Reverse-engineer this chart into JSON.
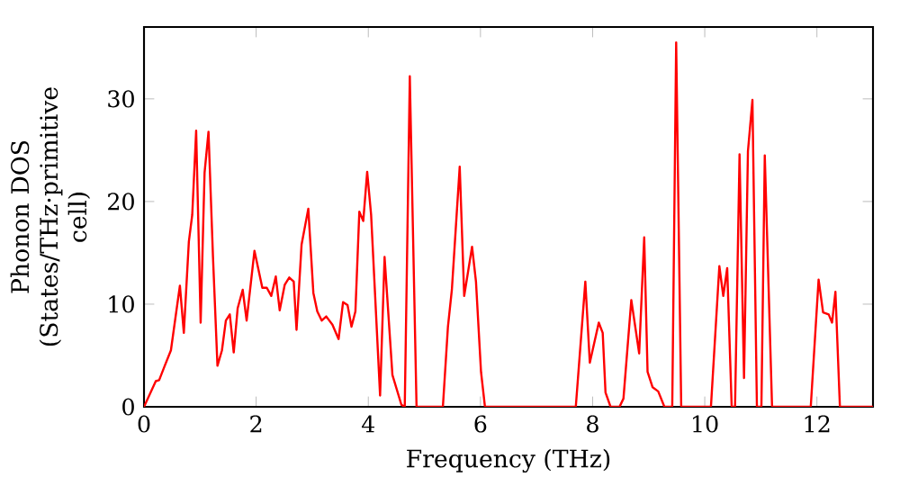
{
  "chart_data": {
    "type": "line",
    "xlabel": "Frequency (THz)",
    "ylabel": "Phonon DOS (States/THz·primitive cell)",
    "xlim": [
      0,
      13
    ],
    "ylim": [
      0,
      37
    ],
    "xticks": [
      0,
      2,
      4,
      6,
      8,
      10,
      12
    ],
    "yticks": [
      0,
      10,
      20,
      30
    ],
    "x": [
      0,
      0.21,
      0.27,
      0.37,
      0.48,
      0.64,
      0.71,
      0.8,
      0.86,
      0.93,
      1.01,
      1.08,
      1.15,
      1.23,
      1.31,
      1.39,
      1.46,
      1.53,
      1.6,
      1.67,
      1.76,
      1.83,
      1.97,
      2.11,
      2.19,
      2.27,
      2.35,
      2.42,
      2.51,
      2.59,
      2.67,
      2.72,
      2.81,
      2.93,
      3.02,
      3.09,
      3.17,
      3.25,
      3.36,
      3.47,
      3.55,
      3.63,
      3.7,
      3.77,
      3.84,
      3.91,
      3.98,
      4.05,
      4.21,
      4.29,
      4.43,
      4.59,
      4.65,
      4.74,
      4.86,
      5.33,
      5.42,
      5.49,
      5.63,
      5.71,
      5.85,
      5.92,
      6.01,
      6.08,
      7.7,
      7.87,
      7.95,
      8.11,
      8.18,
      8.23,
      8.32,
      8.48,
      8.55,
      8.69,
      8.83,
      8.92,
      8.98,
      9.07,
      9.17,
      9.28,
      9.42,
      9.49,
      9.58,
      10.11,
      10.26,
      10.33,
      10.4,
      10.48,
      10.54,
      10.62,
      10.7,
      10.77,
      10.85,
      10.93,
      11.01,
      11.07,
      11.2,
      11.89,
      12.03,
      12.11,
      12.21,
      12.27,
      12.33,
      12.41,
      13
    ],
    "series": [
      {
        "color": "#ff0000",
        "values": [
          0,
          2.5,
          2.6,
          4.0,
          5.5,
          11.8,
          7.2,
          16.1,
          18.7,
          26.9,
          8.2,
          22.8,
          26.8,
          14.6,
          4.0,
          5.5,
          8.4,
          9.0,
          5.3,
          9.6,
          11.4,
          8.4,
          15.2,
          11.6,
          11.6,
          10.8,
          12.7,
          9.4,
          11.9,
          12.6,
          12.2,
          7.5,
          15.8,
          19.3,
          11.1,
          9.3,
          8.4,
          8.8,
          8.0,
          6.6,
          10.2,
          9.9,
          7.8,
          9.3,
          19.0,
          18.1,
          22.9,
          18.7,
          1.1,
          14.6,
          3.1,
          0.2,
          0,
          32.2,
          0,
          0,
          7.8,
          11.4,
          23.4,
          10.8,
          15.6,
          12.2,
          3.4,
          0,
          0,
          12.2,
          4.3,
          8.2,
          7.2,
          1.4,
          0,
          0,
          0.8,
          10.4,
          5.2,
          16.5,
          3.4,
          1.9,
          1.5,
          0,
          0,
          35.5,
          0,
          0,
          13.7,
          10.8,
          13.5,
          0,
          0,
          24.6,
          2.8,
          24.9,
          29.9,
          0,
          0,
          24.5,
          0,
          0,
          12.4,
          9.2,
          9.0,
          8.2,
          11.2,
          0,
          0
        ]
      }
    ]
  }
}
